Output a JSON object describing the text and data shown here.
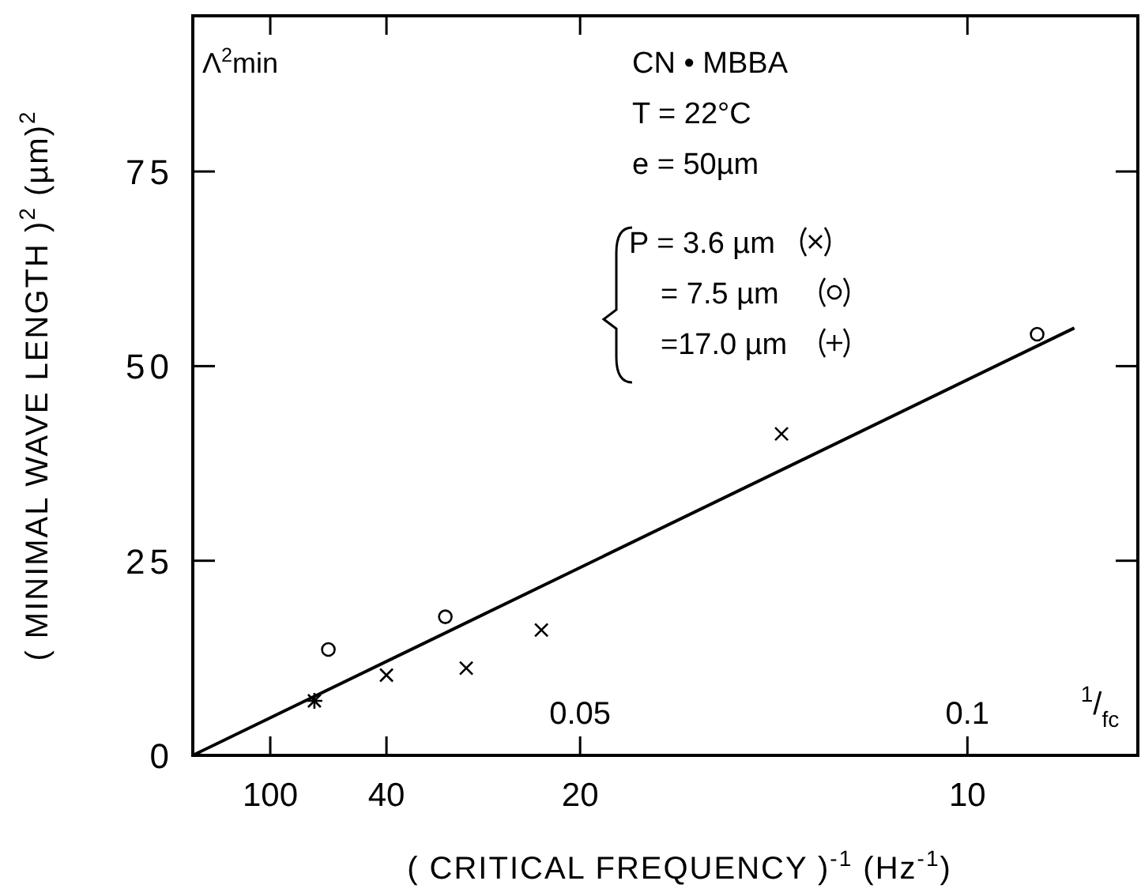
{
  "chart_data": {
    "type": "scatter",
    "xlabel": "$^{1}$/$_{fc}$",
    "ylabel": "( MINIMAL WAVE LENGTH )$^{2}$  (µm)$^{2}$",
    "annotations": [
      "Λ$^{2}$min",
      "CN • MBBA",
      "T = 22°C",
      "e = 50µm",
      "( CRITICAL FREQUENCY )$^{-1}$  (Hz$^{-1}$)",
      "100",
      "40",
      "20",
      "10"
    ],
    "xlim": [
      0,
      0.122
    ],
    "xticks": [
      {
        "value": 0.01,
        "label": null
      },
      {
        "value": 0.025,
        "label": null
      },
      0.05,
      0.1
    ],
    "ylim": [
      0,
      95
    ],
    "yticks": [
      0,
      25,
      50,
      75
    ],
    "grid": false,
    "legend": "top",
    "line_style": "solid",
    "series": [
      {
        "name": "P = 3.6 µm",
        "color": "#000000",
        "marker": "cross",
        "x": [
          0.0157,
          0.025,
          0.0353,
          0.045,
          0.076
        ],
        "values": [
          7.0,
          10.3,
          11.2,
          16.1,
          41.3
        ]
      },
      {
        "name": "= 7.5 µm",
        "color": "#000000",
        "marker": "circle",
        "x": [
          0.0175,
          0.0326,
          0.109
        ],
        "values": [
          13.6,
          17.8,
          54.1
        ]
      },
      {
        "name": "=17.0 µm",
        "color": "#000000",
        "marker": "plus",
        "x": [
          0.0157
        ],
        "values": [
          7.0
        ]
      },
      {
        "type": "line",
        "color": "#000000",
        "x": [
          0,
          0.1138
        ],
        "values": [
          0,
          54.9
        ]
      }
    ]
  }
}
